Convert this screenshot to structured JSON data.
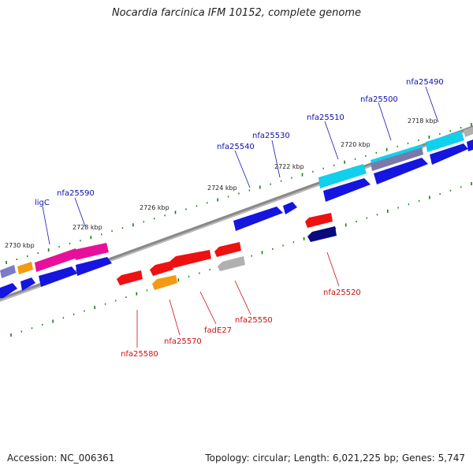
{
  "title": "Nocardia farcinica IFM 10152, complete genome",
  "footer": {
    "accession": "Accession: NC_006361",
    "topology": "Topology: circular; Length: 6,021,225 bp; Genes: 5,747"
  },
  "scale_labels": [
    "2718 kbp",
    "2720 kbp",
    "2722 kbp",
    "2724 kbp",
    "2726 kbp",
    "2728 kbp",
    "2730 kbp"
  ],
  "top_gene_labels": [
    "nfa25490",
    "nfa25500",
    "nfa25510",
    "nfa25530",
    "nfa25540",
    "nfa25590",
    "ligC"
  ],
  "bottom_gene_labels": [
    "nfa25520",
    "nfa25550",
    "fadE27",
    "nfa25570",
    "nfa25580"
  ],
  "colors": {
    "forward_gene": "#1515e0",
    "reverse_gene": "#ee1111",
    "pink_gene": "#e8109a",
    "cyan_gene": "#10d0ee",
    "orange_gene": "#f59a10",
    "grey_gene": "#a8a8a8",
    "navy_gene": "#0a0a80",
    "tick": "#1a7a1a",
    "backbone": "#8a8a8a"
  }
}
